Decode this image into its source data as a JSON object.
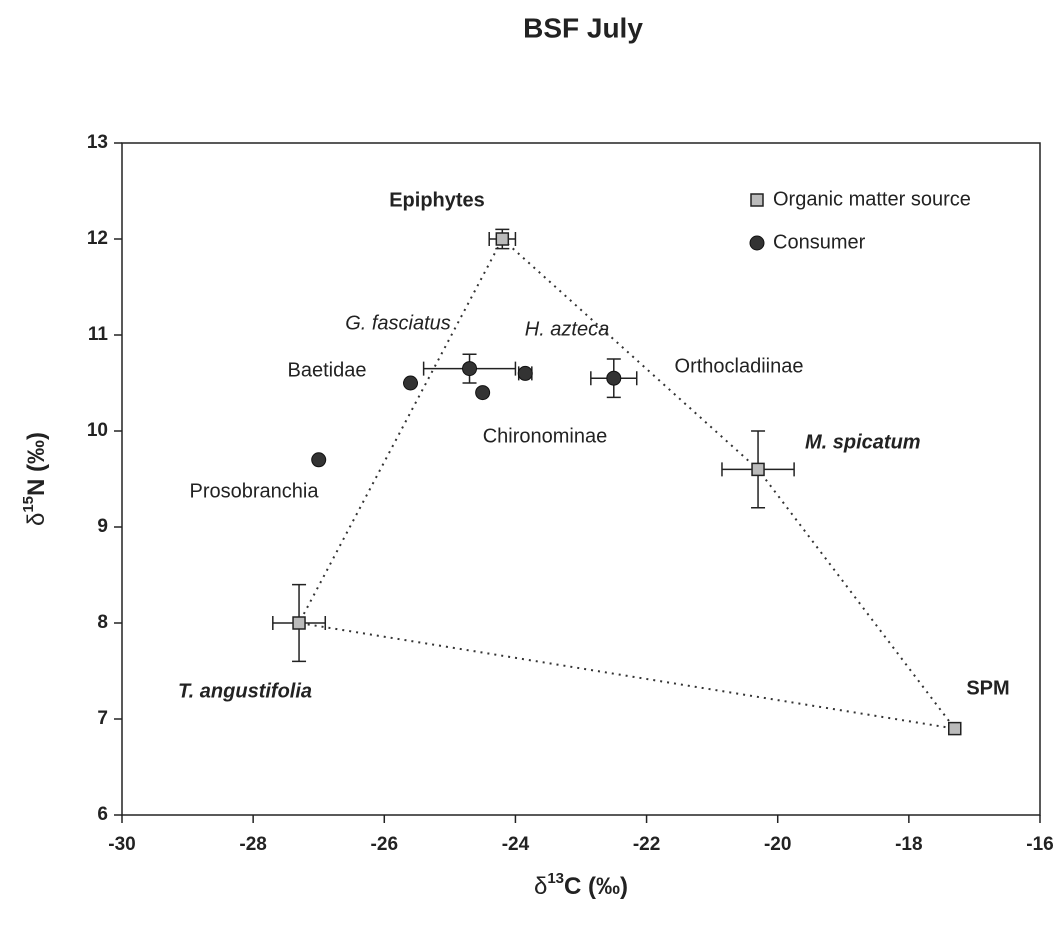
{
  "chart_data": {
    "type": "scatter",
    "title": "BSF July",
    "x_label": {
      "prefix": "δ",
      "sup": "13",
      "suffix": "C (‰)"
    },
    "y_label": {
      "prefix": "δ",
      "sup": "15",
      "suffix": "N (‰)"
    },
    "xlim": [
      -30,
      -16
    ],
    "xticks": [
      -30,
      -28,
      -26,
      -24,
      -22,
      -20,
      -18,
      -16
    ],
    "ylim": [
      6,
      13
    ],
    "yticks": [
      6,
      7,
      8,
      9,
      10,
      11,
      12,
      13
    ],
    "legend": "upper right",
    "series": [
      {
        "name": "Organic matter source",
        "marker": "square",
        "color": "#bbbbbb",
        "labels": [
          "Epiphytes",
          "M. spicatum",
          "SPM",
          "T. angustifolia"
        ],
        "x": [
          -24.2,
          -20.3,
          -17.3,
          -27.3
        ],
        "values": [
          12.0,
          9.6,
          6.9,
          8.0
        ],
        "xerr": [
          0.2,
          0.55,
          null,
          0.4
        ],
        "yerr": [
          0.1,
          0.4,
          null,
          0.4
        ]
      },
      {
        "name": "Consumer",
        "marker": "circle",
        "color": "#333333",
        "labels": [
          "Prosobranchia",
          "Baetidae",
          "G. fasciatus",
          "Chironominae",
          "H. azteca",
          "Orthocladiinae"
        ],
        "x": [
          -27.0,
          -25.6,
          -24.7,
          -24.5,
          -23.85,
          -22.5
        ],
        "values": [
          9.7,
          10.5,
          10.65,
          10.4,
          10.6,
          10.55
        ],
        "xerr": [
          null,
          null,
          0.7,
          null,
          0.1,
          0.35
        ],
        "yerr": [
          null,
          null,
          0.15,
          null,
          null,
          0.2
        ]
      }
    ]
  }
}
